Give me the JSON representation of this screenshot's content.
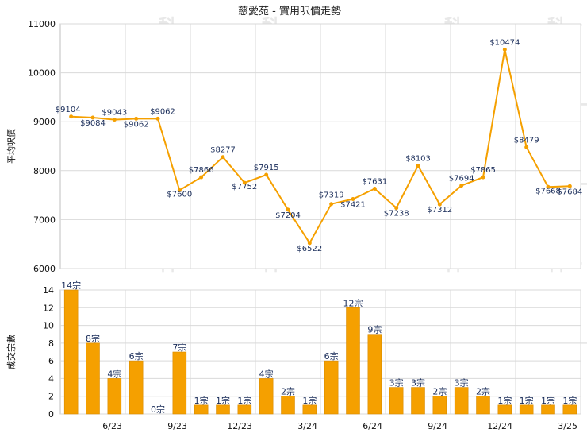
{
  "chart_data": [
    {
      "type": "line",
      "title": "慈愛苑 - 實用呎價走勢",
      "ylabel": "平均呎價",
      "ylim": [
        6000,
        11000
      ],
      "yticks": [
        6000,
        7000,
        8000,
        9000,
        10000,
        11000
      ],
      "x_tick_labels": [
        "6/23",
        "9/23",
        "12/23",
        "3/24",
        "6/24",
        "9/24",
        "12/24",
        "3/25"
      ],
      "x": [
        "2023-03",
        "2023-04",
        "2023-05",
        "2023-06",
        "2023-07",
        "2023-08",
        "2023-09",
        "2023-10",
        "2023-11",
        "2023-12",
        "2024-01",
        "2024-02",
        "2024-03",
        "2024-04",
        "2024-05",
        "2024-06",
        "2024-07",
        "2024-08",
        "2024-09",
        "2024-10",
        "2024-11",
        "2024-12",
        "2025-01",
        "2025-02",
        "2025-03"
      ],
      "values": [
        9104,
        9084,
        9043,
        9062,
        9062,
        7600,
        7866,
        8277,
        7752,
        7915,
        7204,
        6522,
        7319,
        7421,
        7631,
        7238,
        8103,
        7312,
        7694,
        7865,
        10474,
        8479,
        7668,
        7684,
        null
      ],
      "labels": [
        "$9104",
        "$9084",
        "$9043",
        "$9062",
        "$9062",
        "$7600",
        "$7866",
        "$8277",
        "$7752",
        "$7915",
        "$7204",
        "$6522",
        "$7319",
        "$7421",
        "$7631",
        "$7238",
        "$8103",
        "$7312",
        "$7694",
        "$7865",
        "$10474",
        "$8479",
        "$7668",
        "$7684",
        ""
      ],
      "color": "#f5a000",
      "grid": true
    },
    {
      "type": "bar",
      "ylabel": "成交宗數",
      "ylim": [
        0,
        14
      ],
      "yticks": [
        0,
        2,
        4,
        6,
        8,
        10,
        12,
        14
      ],
      "x_tick_labels": [
        "6/23",
        "9/23",
        "12/23",
        "3/24",
        "6/24",
        "9/24",
        "12/24",
        "3/25"
      ],
      "values": [
        14,
        8,
        4,
        6,
        0,
        7,
        1,
        1,
        1,
        4,
        2,
        1,
        6,
        12,
        9,
        3,
        3,
        2,
        3,
        2,
        1,
        1,
        1,
        1
      ],
      "labels": [
        "14宗",
        "8宗",
        "4宗",
        "6宗",
        "0宗",
        "7宗",
        "1宗",
        "1宗",
        "1宗",
        "4宗",
        "2宗",
        "1宗",
        "6宗",
        "12宗",
        "9宗",
        "3宗",
        "3宗",
        "2宗",
        "3宗",
        "2宗",
        "1宗",
        "1宗",
        "1宗",
        "1宗"
      ],
      "color": "#f5a000",
      "grid": true
    }
  ]
}
